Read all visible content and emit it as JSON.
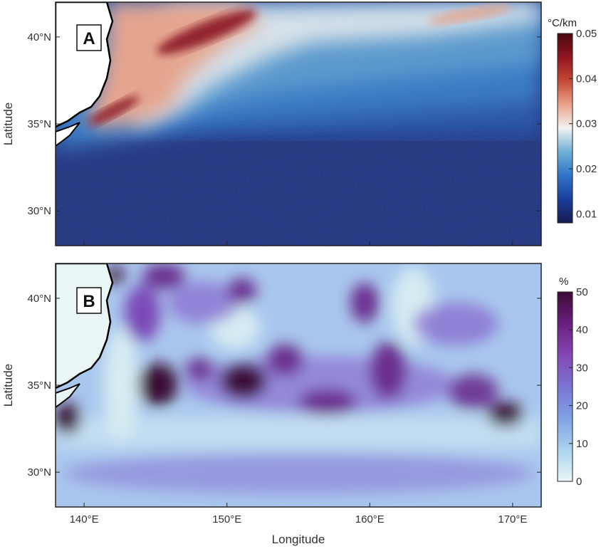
{
  "chart_data": [
    {
      "type": "heatmap",
      "panel_label": "A",
      "ylabel": "Latitude",
      "xlabel": "",
      "xlim": [
        138,
        172
      ],
      "ylim": [
        28,
        42
      ],
      "yticks": [
        30,
        35,
        40
      ],
      "ytick_labels": [
        "30°N",
        "35°N",
        "40°N"
      ],
      "colorbar": {
        "title": "°C/km",
        "range": [
          0.008,
          0.05
        ],
        "ticks": [
          0.01,
          0.02,
          0.03,
          0.04,
          0.05
        ],
        "tick_labels": [
          "0.01",
          "0.02",
          "0.03",
          "0.04",
          "0.05"
        ],
        "colors": [
          "#161a52",
          "#1b3f9a",
          "#2f74c6",
          "#6fb0d6",
          "#f2f2f2",
          "#e9a38a",
          "#c44a36",
          "#8e1620",
          "#4a0710"
        ]
      },
      "features": [
        {
          "lon": 147.5,
          "lat": 40.6,
          "value": 0.048
        },
        {
          "lon": 141.0,
          "lat": 35.4,
          "value": 0.046
        },
        {
          "lon": 155.0,
          "lat": 39.0,
          "value": 0.03
        },
        {
          "lon": 165.0,
          "lat": 40.5,
          "value": 0.028
        },
        {
          "lon": 155.0,
          "lat": 32.0,
          "value": 0.01
        }
      ]
    },
    {
      "type": "heatmap",
      "panel_label": "B",
      "ylabel": "Latitude",
      "xlabel": "Longitude",
      "xlim": [
        138,
        172
      ],
      "ylim": [
        28,
        42
      ],
      "xticks": [
        140,
        150,
        160,
        170
      ],
      "xtick_labels": [
        "140°E",
        "150°E",
        "160°E",
        "170°E"
      ],
      "yticks": [
        30,
        35,
        40
      ],
      "ytick_labels": [
        "30°N",
        "35°N",
        "40°N"
      ],
      "colorbar": {
        "title": "%",
        "range": [
          0,
          50
        ],
        "ticks": [
          0,
          10,
          20,
          30,
          40,
          50
        ],
        "tick_labels": [
          "0",
          "10",
          "20",
          "30",
          "40",
          "50"
        ],
        "colors": [
          "#eaf6f6",
          "#a9d3ee",
          "#7fa2e2",
          "#7a74d4",
          "#8548b4",
          "#6a1f7e",
          "#3b0b36"
        ]
      },
      "features": [
        {
          "lon": 145.0,
          "lat": 35.2,
          "value": 48
        },
        {
          "lon": 151.0,
          "lat": 35.2,
          "value": 48
        },
        {
          "lon": 169.5,
          "lat": 33.3,
          "value": 46
        },
        {
          "lon": 138.8,
          "lat": 33.0,
          "value": 48
        },
        {
          "lon": 142.0,
          "lat": 41.2,
          "value": 45
        },
        {
          "lon": 161.5,
          "lat": 35.8,
          "value": 40
        },
        {
          "lon": 157.0,
          "lat": 34.0,
          "value": 38
        }
      ]
    }
  ]
}
